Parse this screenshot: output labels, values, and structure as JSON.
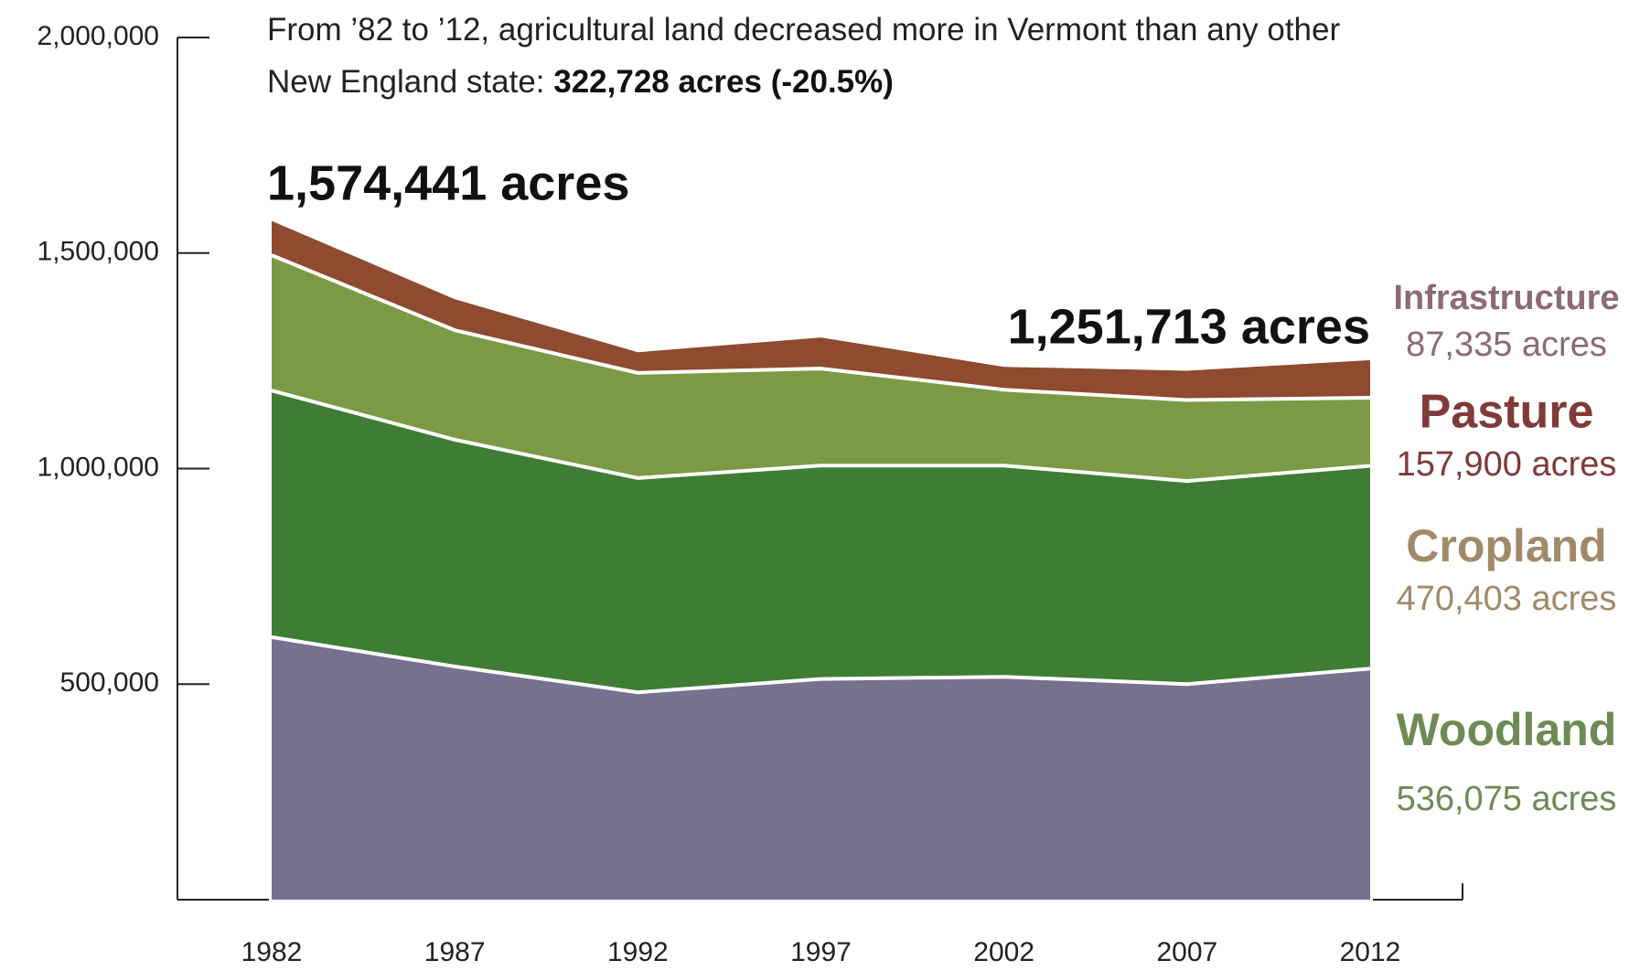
{
  "chart_data": {
    "type": "stacked_area",
    "title": "From ’82 to ’12, agricultural land decreased more in Vermont than any other New England state:",
    "title_highlight": "322,728 acres (-20.5%)",
    "annotations": [
      "1,574,441 acres",
      "1,251,713 acres"
    ],
    "x": [
      1982,
      1987,
      1992,
      1997,
      2002,
      2007,
      2012
    ],
    "xlim": [
      1982,
      2012
    ],
    "ylim": [
      0,
      2000000
    ],
    "yticks": [
      {
        "value": 500000,
        "label": "500,000"
      },
      {
        "value": 1000000,
        "label": "1,000,000"
      },
      {
        "value": 1500000,
        "label": "1,500,000"
      },
      {
        "value": 2000000,
        "label": "2,000,000"
      }
    ],
    "series": [
      {
        "name": "Woodland",
        "end_label": "536,075 acres",
        "color": "#77708f",
        "label_color": "#6e8a55",
        "values": [
          609000,
          541000,
          481000,
          512000,
          517000,
          500000,
          536075
        ]
      },
      {
        "name": "Cropland",
        "end_label": "470,403 acres",
        "color": "#3f7d35",
        "label_color": "#a08a6a",
        "values": [
          572000,
          526000,
          497000,
          495000,
          490000,
          471000,
          470403
        ]
      },
      {
        "name": "Pasture",
        "end_label": "157,900 acres",
        "color": "#7c9a45",
        "label_color": "#7f3a3a",
        "values": [
          314000,
          254000,
          244000,
          225000,
          176000,
          188000,
          157900
        ]
      },
      {
        "name": "Infrastructure",
        "end_label": "87,335 acres",
        "color": "#8e4b30",
        "label_color": "#8c6a78",
        "values": [
          79441,
          72000,
          48000,
          72000,
          53000,
          68000,
          87335
        ]
      }
    ]
  }
}
